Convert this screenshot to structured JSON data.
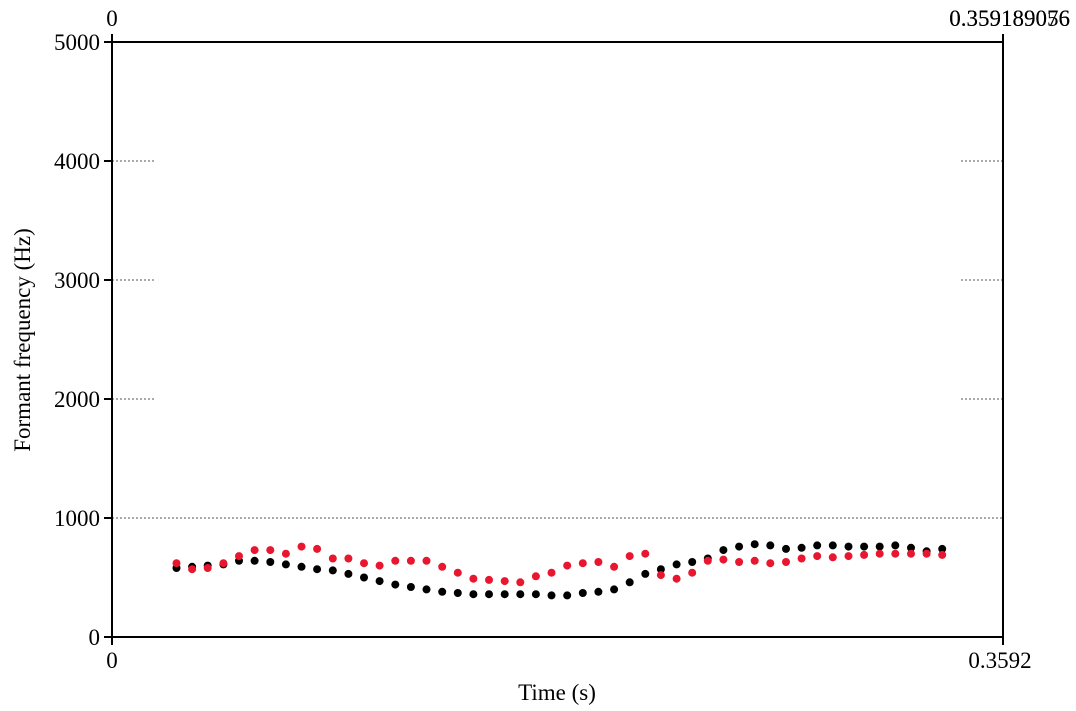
{
  "chart_data": {
    "type": "scatter",
    "xlabel": "Time (s)",
    "ylabel": "Formant frequency (Hz)",
    "xlim": [
      0,
      0.3592
    ],
    "ylim": [
      0,
      5000
    ],
    "x_tick_labels": [
      "0",
      "0.3592"
    ],
    "top_tick_labels": [
      "0",
      "0.359189076",
      "0.359189056"
    ],
    "y_ticks": [
      0,
      1000,
      2000,
      3000,
      4000,
      5000
    ],
    "y_tick_labels": [
      "0",
      "1000",
      "2000",
      "3000",
      "4000",
      "5000"
    ],
    "grid": "dotted horizontal lines at y ticks",
    "colors": {
      "series_1": "#000000",
      "series_2": "#e8162f",
      "grid": "#555555"
    },
    "series": [
      {
        "color": "#000000",
        "points": [
          [
            0.026,
            580
          ],
          [
            0.0323,
            590
          ],
          [
            0.0386,
            600
          ],
          [
            0.0449,
            610
          ],
          [
            0.0512,
            640
          ],
          [
            0.0575,
            640
          ],
          [
            0.0638,
            630
          ],
          [
            0.0701,
            610
          ],
          [
            0.0764,
            590
          ],
          [
            0.0827,
            570
          ],
          [
            0.089,
            560
          ],
          [
            0.0953,
            530
          ],
          [
            0.1016,
            500
          ],
          [
            0.1079,
            470
          ],
          [
            0.1142,
            440
          ],
          [
            0.1205,
            420
          ],
          [
            0.1268,
            400
          ],
          [
            0.1331,
            380
          ],
          [
            0.1394,
            370
          ],
          [
            0.1457,
            360
          ],
          [
            0.152,
            360
          ],
          [
            0.1583,
            360
          ],
          [
            0.1646,
            360
          ],
          [
            0.1709,
            360
          ],
          [
            0.1772,
            350
          ],
          [
            0.1835,
            350
          ],
          [
            0.1898,
            370
          ],
          [
            0.1961,
            380
          ],
          [
            0.2024,
            400
          ],
          [
            0.2087,
            460
          ],
          [
            0.215,
            530
          ],
          [
            0.2213,
            570
          ],
          [
            0.2276,
            610
          ],
          [
            0.2339,
            630
          ],
          [
            0.2402,
            660
          ],
          [
            0.2465,
            730
          ],
          [
            0.2528,
            760
          ],
          [
            0.2591,
            780
          ],
          [
            0.2654,
            770
          ],
          [
            0.2717,
            740
          ],
          [
            0.278,
            750
          ],
          [
            0.2843,
            770
          ],
          [
            0.2906,
            770
          ],
          [
            0.2969,
            760
          ],
          [
            0.3032,
            760
          ],
          [
            0.3095,
            760
          ],
          [
            0.3158,
            770
          ],
          [
            0.3221,
            750
          ],
          [
            0.3284,
            720
          ],
          [
            0.3347,
            740
          ]
        ]
      },
      {
        "color": "#e8162f",
        "points": [
          [
            0.026,
            620
          ],
          [
            0.0323,
            570
          ],
          [
            0.0386,
            580
          ],
          [
            0.0449,
            620
          ],
          [
            0.0512,
            680
          ],
          [
            0.0575,
            730
          ],
          [
            0.0638,
            730
          ],
          [
            0.0701,
            700
          ],
          [
            0.0764,
            760
          ],
          [
            0.0827,
            740
          ],
          [
            0.089,
            660
          ],
          [
            0.0953,
            660
          ],
          [
            0.1016,
            620
          ],
          [
            0.1079,
            600
          ],
          [
            0.1142,
            640
          ],
          [
            0.1205,
            640
          ],
          [
            0.1268,
            640
          ],
          [
            0.1331,
            590
          ],
          [
            0.1394,
            540
          ],
          [
            0.1457,
            490
          ],
          [
            0.152,
            480
          ],
          [
            0.1583,
            470
          ],
          [
            0.1646,
            460
          ],
          [
            0.1709,
            510
          ],
          [
            0.1772,
            540
          ],
          [
            0.1835,
            600
          ],
          [
            0.1898,
            620
          ],
          [
            0.1961,
            630
          ],
          [
            0.2024,
            590
          ],
          [
            0.2087,
            680
          ],
          [
            0.215,
            700
          ],
          [
            0.2213,
            520
          ],
          [
            0.2276,
            490
          ],
          [
            0.2339,
            540
          ],
          [
            0.2402,
            640
          ],
          [
            0.2465,
            650
          ],
          [
            0.2528,
            630
          ],
          [
            0.2591,
            640
          ],
          [
            0.2654,
            620
          ],
          [
            0.2717,
            630
          ],
          [
            0.278,
            660
          ],
          [
            0.2843,
            680
          ],
          [
            0.2906,
            670
          ],
          [
            0.2969,
            680
          ],
          [
            0.3032,
            690
          ],
          [
            0.3095,
            700
          ],
          [
            0.3158,
            700
          ],
          [
            0.3221,
            700
          ],
          [
            0.3284,
            700
          ],
          [
            0.3347,
            690
          ]
        ]
      }
    ]
  }
}
